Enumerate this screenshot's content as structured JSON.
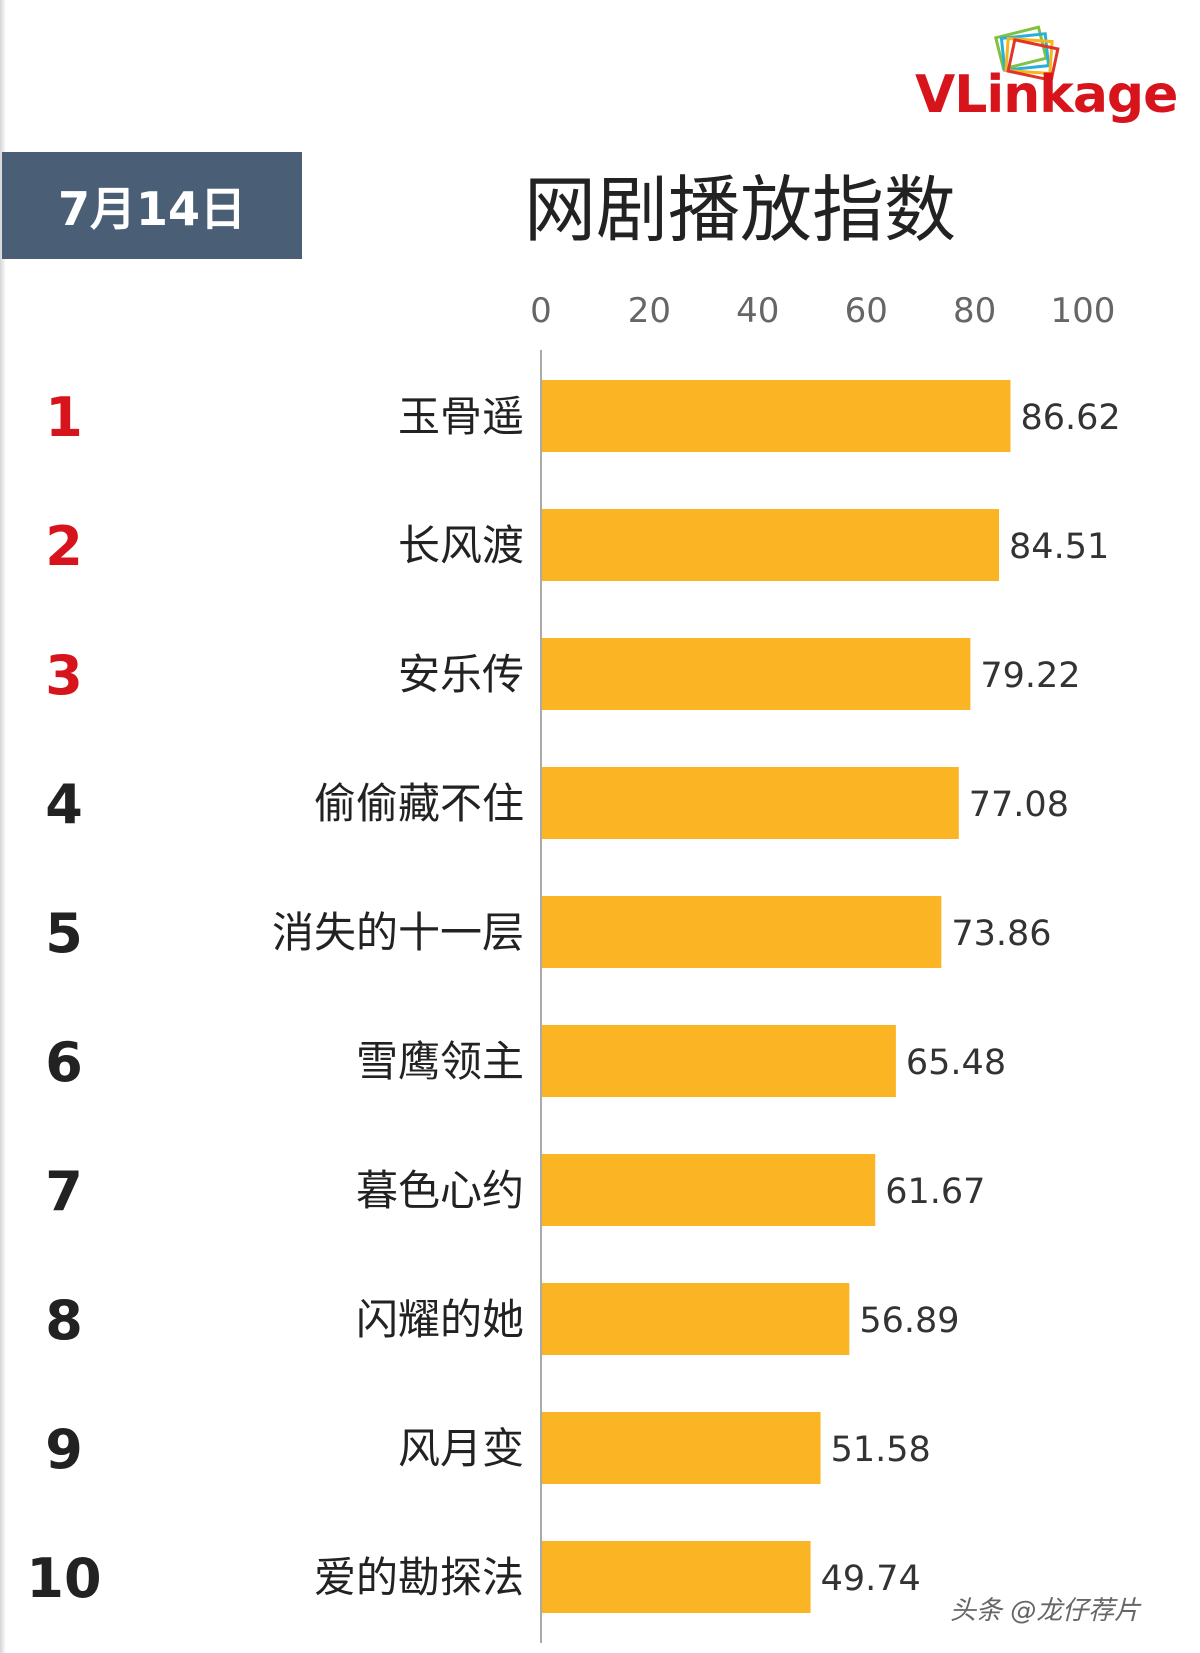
{
  "date_badge": "7月14日",
  "logo": {
    "text_prefix": "VLink",
    "text_suffix": "age",
    "brand_color": "#d7131b"
  },
  "watermark": "头条 @龙仔荐片",
  "colors": {
    "bar": "#fbb524",
    "top_rank": "#d7131b",
    "rank": "#222222",
    "badge_bg": "#4a5f76",
    "axis": "#aaaaaa",
    "tick_text": "#666666",
    "value_text": "#333333"
  },
  "chart_data": {
    "type": "bar",
    "orientation": "horizontal",
    "title": "网剧播放指数",
    "xlim": [
      0,
      100
    ],
    "ticks": [
      0,
      20,
      40,
      60,
      80,
      100
    ],
    "grid": false,
    "ranks": [
      "1",
      "2",
      "3",
      "4",
      "5",
      "6",
      "7",
      "8",
      "9",
      "10"
    ],
    "categories": [
      "玉骨遥",
      "长风渡",
      "安乐传",
      "偷偷藏不住",
      "消失的十一层",
      "雪鹰领主",
      "暮色心约",
      "闪耀的她",
      "风月变",
      "爱的勘探法"
    ],
    "values": [
      86.62,
      84.51,
      79.22,
      77.08,
      73.86,
      65.48,
      61.67,
      56.89,
      51.58,
      49.74
    ],
    "value_labels": [
      "86.62",
      "84.51",
      "79.22",
      "77.08",
      "73.86",
      "65.48",
      "61.67",
      "56.89",
      "51.58",
      "49.74"
    ]
  }
}
